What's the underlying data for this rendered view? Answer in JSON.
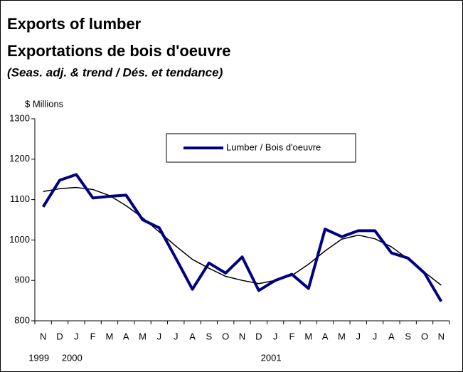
{
  "chart_data": {
    "type": "line",
    "title": "Exports of lumber",
    "subtitle": "Exportations de bois d'oeuvre",
    "note": "(Seas. adj. & trend / Dés. et tendance)",
    "y_label": "$ Millions",
    "categories": [
      "N",
      "D",
      "J",
      "F",
      "M",
      "A",
      "M",
      "J",
      "J",
      "A",
      "S",
      "O",
      "N",
      "D",
      "J",
      "F",
      "M",
      "A",
      "M",
      "J",
      "J",
      "A",
      "S",
      "O",
      "N"
    ],
    "years": [
      "1999",
      null,
      "2000",
      null,
      null,
      null,
      null,
      null,
      null,
      null,
      null,
      null,
      null,
      null,
      "2001",
      null,
      null,
      null,
      null,
      null,
      null,
      null,
      null,
      null,
      null
    ],
    "series": [
      {
        "name": "Lumber / Bois d'oeuvre",
        "color": "#000080",
        "width": 4,
        "values": [
          1082,
          1148,
          1162,
          1104,
          1108,
          1111,
          1050,
          1030,
          955,
          878,
          943,
          918,
          958,
          875,
          900,
          915,
          880,
          1027,
          1008,
          1023,
          1023,
          968,
          955,
          918,
          848
        ]
      },
      {
        "color": "#000000",
        "width": 1.5,
        "values": [
          1120,
          1127,
          1130,
          1125,
          1110,
          1085,
          1055,
          1020,
          985,
          952,
          930,
          910,
          900,
          892,
          900,
          912,
          940,
          973,
          1002,
          1012,
          1003,
          983,
          953,
          920,
          888
        ]
      }
    ],
    "ylim": [
      800,
      1300
    ],
    "yticks": [
      800,
      900,
      1000,
      1100,
      1200,
      1300
    ]
  }
}
